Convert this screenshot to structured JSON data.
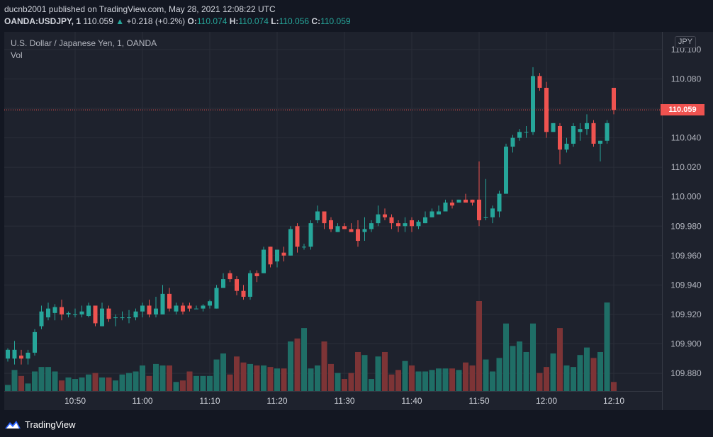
{
  "header": {
    "publisher_line": "ducnb2001 published on TradingView.com, May 28, 2021 12:08:22 UTC",
    "symbol": "OANDA:USDJPY, 1",
    "last": "110.059",
    "change": "+0.218 (+0.2%)",
    "open_label": "O:",
    "open": "110.074",
    "high_label": "H:",
    "high": "110.074",
    "low_label": "L:",
    "low": "110.056",
    "close_label": "C:",
    "close": "110.059"
  },
  "legend": {
    "title": "U.S. Dollar / Japanese Yen, 1, OANDA",
    "volume": "Vol"
  },
  "currency_badge": "JPY",
  "last_price_tag": "110.059",
  "footer": {
    "brand": "TradingView",
    "icon": "tradingview-logo-icon"
  },
  "colors": {
    "up": "#26a69a",
    "down": "#ef5350",
    "up_vol": "#1f6e66",
    "down_vol": "#7d3436",
    "background": "#131722",
    "grid": "#2a2e39"
  },
  "chart_data": {
    "type": "candlestick",
    "title": "U.S. Dollar / Japanese Yen, 1, OANDA",
    "ylim": [
      109.868,
      110.112
    ],
    "y_ticks": [
      "110.100",
      "110.080",
      "110.060",
      "110.040",
      "110.020",
      "110.000",
      "109.980",
      "109.960",
      "109.940",
      "109.920",
      "109.900",
      "109.880"
    ],
    "x_ticks": [
      "10:50",
      "11:00",
      "11:10",
      "11:20",
      "11:30",
      "11:40",
      "11:50",
      "12:00",
      "12:10"
    ],
    "x_tick_minutes": [
      10,
      20,
      30,
      40,
      50,
      60,
      70,
      80,
      90
    ],
    "last_price": 110.059,
    "candles": [
      {
        "o": 109.89,
        "h": 109.897,
        "l": 109.888,
        "c": 109.896,
        "v": 0.4
      },
      {
        "o": 109.89,
        "h": 109.902,
        "l": 109.886,
        "c": 109.896,
        "v": 1.4
      },
      {
        "o": 109.892,
        "h": 109.896,
        "l": 109.886,
        "c": 109.89,
        "v": 1.0
      },
      {
        "o": 109.89,
        "h": 109.896,
        "l": 109.886,
        "c": 109.894,
        "v": 0.5
      },
      {
        "o": 109.894,
        "h": 109.91,
        "l": 109.892,
        "c": 109.908,
        "v": 1.3
      },
      {
        "o": 109.912,
        "h": 109.926,
        "l": 109.91,
        "c": 109.922,
        "v": 1.6
      },
      {
        "o": 109.918,
        "h": 109.928,
        "l": 109.916,
        "c": 109.924,
        "v": 1.6
      },
      {
        "o": 109.921,
        "h": 109.927,
        "l": 109.916,
        "c": 109.925,
        "v": 1.3
      },
      {
        "o": 109.925,
        "h": 109.93,
        "l": 109.916,
        "c": 109.92,
        "v": 0.7
      },
      {
        "o": 109.92,
        "h": 109.922,
        "l": 109.918,
        "c": 109.921,
        "v": 0.9
      },
      {
        "o": 109.92,
        "h": 109.924,
        "l": 109.918,
        "c": 109.92,
        "v": 0.8
      },
      {
        "o": 109.92,
        "h": 109.926,
        "l": 109.918,
        "c": 109.922,
        "v": 0.9
      },
      {
        "o": 109.919,
        "h": 109.928,
        "l": 109.918,
        "c": 109.926,
        "v": 1.1
      },
      {
        "o": 109.926,
        "h": 109.926,
        "l": 109.912,
        "c": 109.914,
        "v": 1.2
      },
      {
        "o": 109.912,
        "h": 109.928,
        "l": 109.912,
        "c": 109.924,
        "v": 0.9
      },
      {
        "o": 109.924,
        "h": 109.926,
        "l": 109.915,
        "c": 109.917,
        "v": 0.9
      },
      {
        "o": 109.918,
        "h": 109.92,
        "l": 109.912,
        "c": 109.918,
        "v": 0.7
      },
      {
        "o": 109.918,
        "h": 109.922,
        "l": 109.916,
        "c": 109.918,
        "v": 1.1
      },
      {
        "o": 109.918,
        "h": 109.923,
        "l": 109.914,
        "c": 109.918,
        "v": 1.2
      },
      {
        "o": 109.918,
        "h": 109.924,
        "l": 109.916,
        "c": 109.922,
        "v": 1.3
      },
      {
        "o": 109.922,
        "h": 109.928,
        "l": 109.918,
        "c": 109.926,
        "v": 1.7
      },
      {
        "o": 109.926,
        "h": 109.93,
        "l": 109.918,
        "c": 109.92,
        "v": 1.0
      },
      {
        "o": 109.92,
        "h": 109.932,
        "l": 109.918,
        "c": 109.924,
        "v": 1.8
      },
      {
        "o": 109.92,
        "h": 109.94,
        "l": 109.92,
        "c": 109.934,
        "v": 1.7
      },
      {
        "o": 109.934,
        "h": 109.938,
        "l": 109.922,
        "c": 109.924,
        "v": 1.7
      },
      {
        "o": 109.922,
        "h": 109.928,
        "l": 109.92,
        "c": 109.926,
        "v": 0.6
      },
      {
        "o": 109.926,
        "h": 109.928,
        "l": 109.92,
        "c": 109.922,
        "v": 0.7
      },
      {
        "o": 109.926,
        "h": 109.928,
        "l": 109.922,
        "c": 109.924,
        "v": 1.3
      },
      {
        "o": 109.924,
        "h": 109.926,
        "l": 109.924,
        "c": 109.924,
        "v": 1.0
      },
      {
        "o": 109.924,
        "h": 109.927,
        "l": 109.922,
        "c": 109.926,
        "v": 1.0
      },
      {
        "o": 109.926,
        "h": 109.93,
        "l": 109.924,
        "c": 109.929,
        "v": 1.0
      },
      {
        "o": 109.924,
        "h": 109.94,
        "l": 109.924,
        "c": 109.938,
        "v": 2.1
      },
      {
        "o": 109.938,
        "h": 109.948,
        "l": 109.938,
        "c": 109.944,
        "v": 2.5
      },
      {
        "o": 109.948,
        "h": 109.95,
        "l": 109.942,
        "c": 109.944,
        "v": 1.1
      },
      {
        "o": 109.944,
        "h": 109.946,
        "l": 109.933,
        "c": 109.936,
        "v": 2.3
      },
      {
        "o": 109.936,
        "h": 109.94,
        "l": 109.93,
        "c": 109.932,
        "v": 1.9
      },
      {
        "o": 109.932,
        "h": 109.95,
        "l": 109.93,
        "c": 109.948,
        "v": 1.8
      },
      {
        "o": 109.948,
        "h": 109.95,
        "l": 109.942,
        "c": 109.946,
        "v": 1.7
      },
      {
        "o": 109.948,
        "h": 109.966,
        "l": 109.948,
        "c": 109.964,
        "v": 1.7
      },
      {
        "o": 109.966,
        "h": 109.966,
        "l": 109.952,
        "c": 109.954,
        "v": 1.6
      },
      {
        "o": 109.956,
        "h": 109.964,
        "l": 109.952,
        "c": 109.964,
        "v": 1.5
      },
      {
        "o": 109.962,
        "h": 109.966,
        "l": 109.956,
        "c": 109.96,
        "v": 1.5
      },
      {
        "o": 109.96,
        "h": 109.98,
        "l": 109.96,
        "c": 109.978,
        "v": 3.3
      },
      {
        "o": 109.98,
        "h": 109.982,
        "l": 109.962,
        "c": 109.966,
        "v": 3.5
      },
      {
        "o": 109.966,
        "h": 109.968,
        "l": 109.964,
        "c": 109.966,
        "v": 4.2
      },
      {
        "o": 109.966,
        "h": 109.984,
        "l": 109.964,
        "c": 109.982,
        "v": 1.5
      },
      {
        "o": 109.984,
        "h": 109.994,
        "l": 109.982,
        "c": 109.99,
        "v": 1.7
      },
      {
        "o": 109.99,
        "h": 109.99,
        "l": 109.978,
        "c": 109.982,
        "v": 3.3
      },
      {
        "o": 109.984,
        "h": 109.986,
        "l": 109.976,
        "c": 109.978,
        "v": 1.8
      },
      {
        "o": 109.976,
        "h": 109.982,
        "l": 109.976,
        "c": 109.98,
        "v": 1.2
      },
      {
        "o": 109.98,
        "h": 109.982,
        "l": 109.978,
        "c": 109.978,
        "v": 0.8
      },
      {
        "o": 109.978,
        "h": 109.982,
        "l": 109.976,
        "c": 109.976,
        "v": 1.2
      },
      {
        "o": 109.978,
        "h": 109.984,
        "l": 109.966,
        "c": 109.97,
        "v": 2.6
      },
      {
        "o": 109.976,
        "h": 109.986,
        "l": 109.97,
        "c": 109.978,
        "v": 2.4
      },
      {
        "o": 109.978,
        "h": 109.984,
        "l": 109.976,
        "c": 109.982,
        "v": 0.8
      },
      {
        "o": 109.982,
        "h": 109.994,
        "l": 109.98,
        "c": 109.988,
        "v": 2.3
      },
      {
        "o": 109.988,
        "h": 109.992,
        "l": 109.984,
        "c": 109.986,
        "v": 2.6
      },
      {
        "o": 109.986,
        "h": 109.988,
        "l": 109.978,
        "c": 109.982,
        "v": 1.1
      },
      {
        "o": 109.982,
        "h": 109.984,
        "l": 109.976,
        "c": 109.98,
        "v": 1.4
      },
      {
        "o": 109.98,
        "h": 109.986,
        "l": 109.976,
        "c": 109.982,
        "v": 2.0
      },
      {
        "o": 109.984,
        "h": 109.986,
        "l": 109.976,
        "c": 109.98,
        "v": 1.7
      },
      {
        "o": 109.98,
        "h": 109.984,
        "l": 109.978,
        "c": 109.983,
        "v": 1.3
      },
      {
        "o": 109.982,
        "h": 109.99,
        "l": 109.982,
        "c": 109.986,
        "v": 1.3
      },
      {
        "o": 109.986,
        "h": 109.992,
        "l": 109.986,
        "c": 109.99,
        "v": 1.4
      },
      {
        "o": 109.988,
        "h": 109.994,
        "l": 109.988,
        "c": 109.99,
        "v": 1.5
      },
      {
        "o": 109.99,
        "h": 109.998,
        "l": 109.99,
        "c": 109.996,
        "v": 1.5
      },
      {
        "o": 109.996,
        "h": 109.998,
        "l": 109.992,
        "c": 109.994,
        "v": 1.5
      },
      {
        "o": 109.996,
        "h": 109.998,
        "l": 109.996,
        "c": 109.998,
        "v": 1.4
      },
      {
        "o": 109.998,
        "h": 110.002,
        "l": 109.996,
        "c": 109.996,
        "v": 1.9
      },
      {
        "o": 109.998,
        "h": 109.998,
        "l": 109.994,
        "c": 109.996,
        "v": 1.7
      },
      {
        "o": 109.998,
        "h": 110.024,
        "l": 109.98,
        "c": 109.984,
        "v": 6.0
      },
      {
        "o": 109.986,
        "h": 110.012,
        "l": 109.984,
        "c": 109.986,
        "v": 2.1
      },
      {
        "o": 109.986,
        "h": 109.994,
        "l": 109.982,
        "c": 109.992,
        "v": 1.3
      },
      {
        "o": 109.99,
        "h": 110.004,
        "l": 109.986,
        "c": 110.002,
        "v": 2.2
      },
      {
        "o": 110.002,
        "h": 110.036,
        "l": 110.002,
        "c": 110.034,
        "v": 4.5
      },
      {
        "o": 110.034,
        "h": 110.042,
        "l": 110.03,
        "c": 110.04,
        "v": 3.0
      },
      {
        "o": 110.04,
        "h": 110.046,
        "l": 110.038,
        "c": 110.044,
        "v": 3.3
      },
      {
        "o": 110.044,
        "h": 110.048,
        "l": 110.04,
        "c": 110.044,
        "v": 2.6
      },
      {
        "o": 110.044,
        "h": 110.088,
        "l": 110.042,
        "c": 110.082,
        "v": 4.5
      },
      {
        "o": 110.082,
        "h": 110.084,
        "l": 110.072,
        "c": 110.074,
        "v": 1.2
      },
      {
        "o": 110.074,
        "h": 110.078,
        "l": 110.04,
        "c": 110.044,
        "v": 1.6
      },
      {
        "o": 110.044,
        "h": 110.05,
        "l": 110.044,
        "c": 110.05,
        "v": 2.5
      },
      {
        "o": 110.048,
        "h": 110.05,
        "l": 110.022,
        "c": 110.032,
        "v": 4.2
      },
      {
        "o": 110.032,
        "h": 110.04,
        "l": 110.03,
        "c": 110.036,
        "v": 1.7
      },
      {
        "o": 110.036,
        "h": 110.05,
        "l": 110.034,
        "c": 110.048,
        "v": 1.6
      },
      {
        "o": 110.044,
        "h": 110.05,
        "l": 110.038,
        "c": 110.046,
        "v": 2.4
      },
      {
        "o": 110.046,
        "h": 110.056,
        "l": 110.042,
        "c": 110.05,
        "v": 2.9
      },
      {
        "o": 110.05,
        "h": 110.052,
        "l": 110.034,
        "c": 110.036,
        "v": 2.2
      },
      {
        "o": 110.036,
        "h": 110.038,
        "l": 110.024,
        "c": 110.038,
        "v": 2.6
      },
      {
        "o": 110.038,
        "h": 110.052,
        "l": 110.036,
        "c": 110.05,
        "v": 5.9
      },
      {
        "o": 110.074,
        "h": 110.074,
        "l": 110.056,
        "c": 110.059,
        "v": 0.6
      }
    ]
  }
}
